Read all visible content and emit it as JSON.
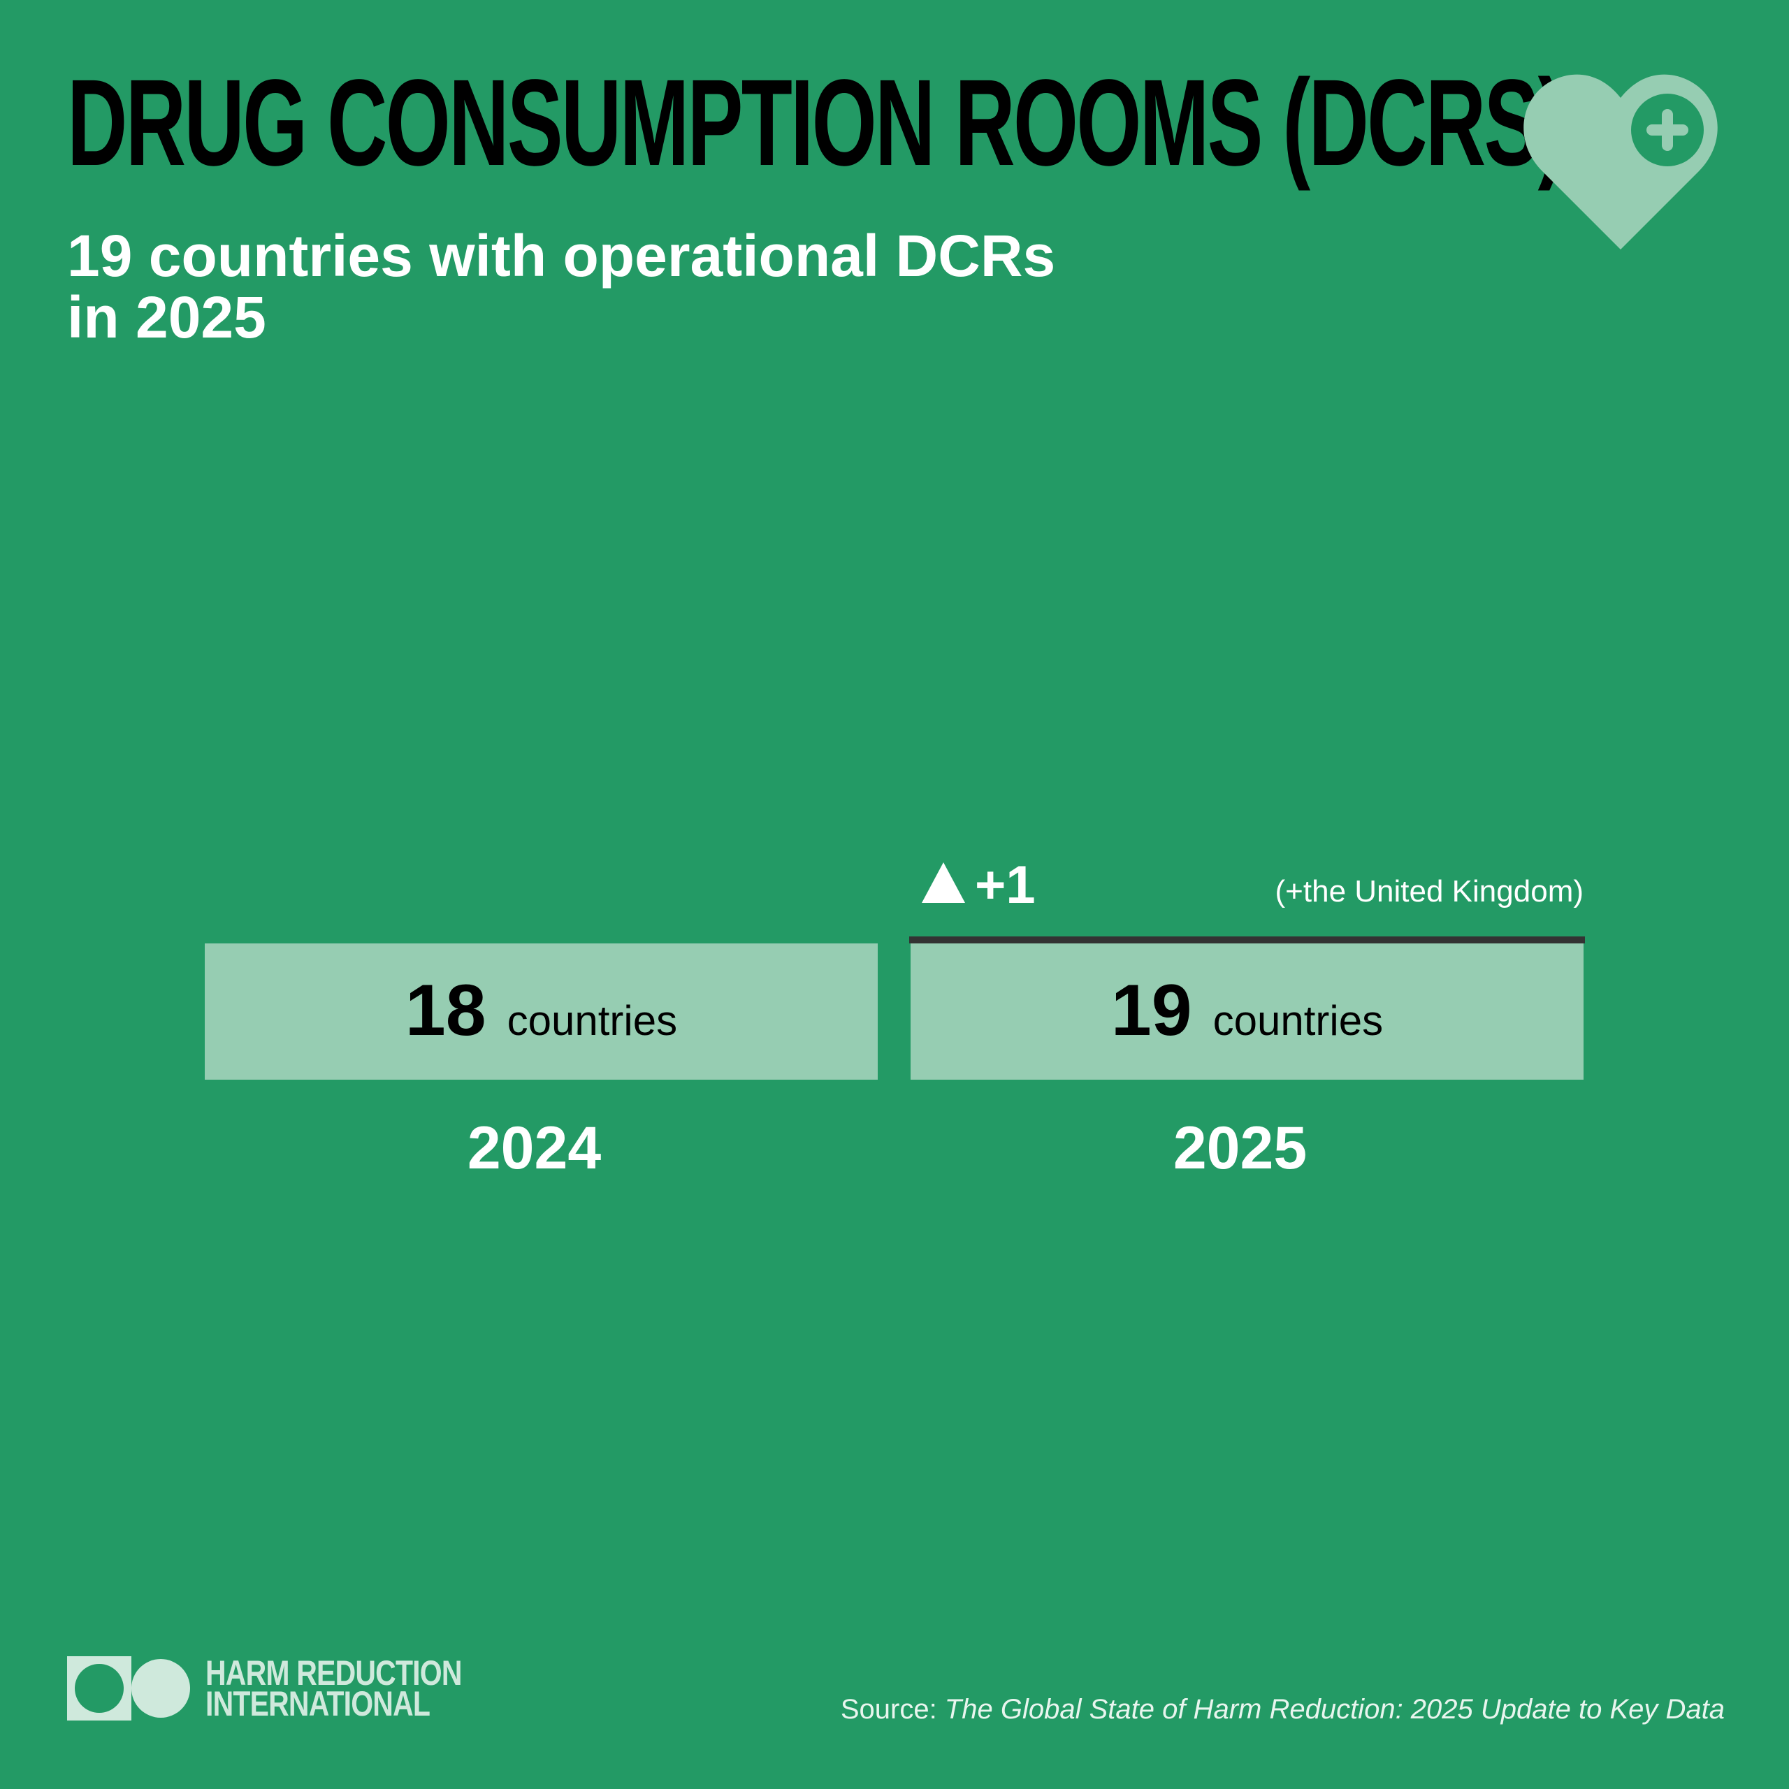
{
  "title": "DRUG CONSUMPTION ROOMS (DCRS)",
  "subtitle_line1": "19 countries with operational DCRs",
  "subtitle_line2": "in 2025",
  "icons": {
    "header": "heart-plus-icon",
    "change": "triangle-up-icon"
  },
  "colors": {
    "background": "#239a65",
    "bar_fill": "#96cdb2",
    "baseline": "#333333",
    "heart": "#96cdb2"
  },
  "chart_data": {
    "type": "bar",
    "categories": [
      "2024",
      "2025"
    ],
    "values": [
      18,
      19
    ],
    "value_unit": "countries",
    "change": {
      "symbol": "▲",
      "value": "+1",
      "note": "(+the United Kingdom)"
    }
  },
  "logo": {
    "line1": "HARM REDUCTION",
    "line2": "INTERNATIONAL"
  },
  "source": {
    "label": "Source: ",
    "title": "The Global State of Harm Reduction: 2025 Update to Key Data"
  }
}
